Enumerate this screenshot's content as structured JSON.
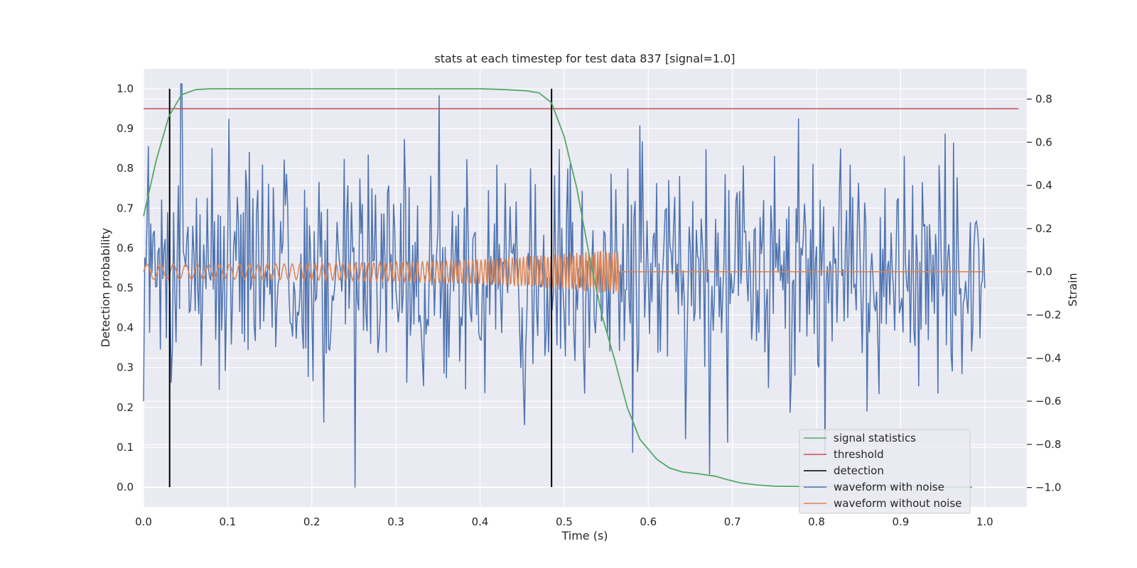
{
  "chart_data": {
    "type": "line",
    "title": "stats at each timestep for test data 837 [signal=1.0]",
    "xlabel": "Time (s)",
    "ylabel_left": "Detection probability",
    "ylabel_right": "Strain",
    "xlim": [
      0.0,
      1.05
    ],
    "ylim_left": [
      -0.05,
      1.05
    ],
    "ylim_right": [
      -1.09,
      0.94
    ],
    "x_ticks": [
      "0.0",
      "0.1",
      "0.2",
      "0.3",
      "0.4",
      "0.5",
      "0.6",
      "0.7",
      "0.8",
      "0.9",
      "1.0"
    ],
    "y_left_ticks": [
      "0.0",
      "0.1",
      "0.2",
      "0.3",
      "0.4",
      "0.5",
      "0.6",
      "0.7",
      "0.8",
      "0.9",
      "1.0"
    ],
    "y_right_ticks": [
      "−1.0",
      "−0.8",
      "−0.6",
      "−0.4",
      "−0.2",
      "0.0",
      "0.2",
      "0.4",
      "0.6",
      "0.8"
    ],
    "grid": true,
    "legend_position": "lower right",
    "background": "#eaeaf2",
    "series": [
      {
        "name": "signal statistics",
        "color": "#55a868",
        "axis": "left",
        "x": [
          0.0,
          0.015,
          0.03,
          0.045,
          0.062,
          0.08,
          0.1,
          0.2,
          0.3,
          0.4,
          0.43,
          0.455,
          0.47,
          0.485,
          0.5,
          0.515,
          0.53,
          0.545,
          0.56,
          0.575,
          0.59,
          0.61,
          0.625,
          0.64,
          0.66,
          0.68,
          0.695,
          0.71,
          0.73,
          0.75,
          0.8,
          0.985
        ],
        "y": [
          0.68,
          0.82,
          0.93,
          0.985,
          0.998,
          1.0,
          1.0,
          1.0,
          1.0,
          1.0,
          0.998,
          0.995,
          0.99,
          0.965,
          0.88,
          0.75,
          0.58,
          0.43,
          0.32,
          0.2,
          0.12,
          0.07,
          0.048,
          0.038,
          0.033,
          0.027,
          0.018,
          0.01,
          0.005,
          0.002,
          0.001,
          0.0
        ]
      },
      {
        "name": "threshold",
        "color": "#c44e52",
        "axis": "left",
        "x": [
          0.0,
          1.04
        ],
        "y": [
          0.95,
          0.95
        ]
      },
      {
        "name": "detection",
        "color": "#000000",
        "axis": "left",
        "segments": [
          {
            "x": 0.031,
            "y": [
              0.0,
              1.0
            ]
          },
          {
            "x": 0.485,
            "y": [
              0.0,
              1.0
            ]
          }
        ]
      },
      {
        "name": "waveform with noise",
        "color": "#4c72b0",
        "axis": "right",
        "description": "noisy strain series, roughly 700 samples between x=0.0 and x=1.0, range about -1.0 to 0.87"
      },
      {
        "name": "waveform without noise",
        "color": "#dd8452",
        "axis": "right",
        "description": "chirp oscillation: amplitude ~0.04 growing to ~0.1 with increasing frequency until x≈0.565, then flat at 0.0 to x=1.0"
      }
    ]
  }
}
